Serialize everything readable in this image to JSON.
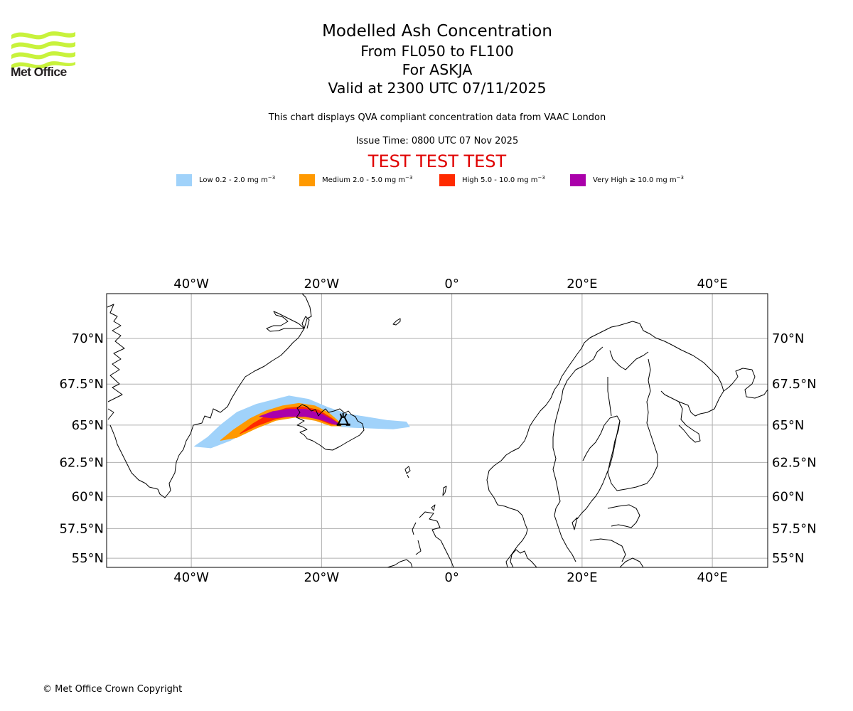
{
  "branding": {
    "logo_name": "Met Office",
    "logo_color": "#c8f23c"
  },
  "header": {
    "title": "Modelled Ash Concentration",
    "flight_levels": "From FL050 to FL100",
    "volcano": "For ASKJA",
    "valid_time": "Valid at 2300 UTC 07/11/2025",
    "description": "This chart displays QVA compliant concentration data from VAAC London",
    "issue_time": "Issue Time: 0800 UTC 07 Nov 2025",
    "test_banner": "TEST TEST TEST",
    "test_banner_color": "#e00000"
  },
  "legend": [
    {
      "label": "Low 0.2 - 2.0 mg m",
      "unit_exp": "−3",
      "color": "#a0d2fa"
    },
    {
      "label": "Medium 2.0 - 5.0 mg m",
      "unit_exp": "−3",
      "color": "#ff9900"
    },
    {
      "label": "High 5.0 - 10.0 mg m",
      "unit_exp": "−3",
      "color": "#ff2a00"
    },
    {
      "label": "Very High  ≥  10.0 mg m",
      "unit_exp": "−3",
      "color": "#aa00aa"
    }
  ],
  "map": {
    "extent": {
      "lon_min": -53,
      "lon_max": 48.5,
      "lat_min": 54.2,
      "lat_max": 72.2
    },
    "gridlines": "on",
    "lon_ticks": [
      {
        "value": -40,
        "label": "40°W"
      },
      {
        "value": -20,
        "label": "20°W"
      },
      {
        "value": 0,
        "label": "0°"
      },
      {
        "value": 20,
        "label": "20°E"
      },
      {
        "value": 40,
        "label": "40°E"
      }
    ],
    "lat_ticks": [
      {
        "value": 70,
        "label": "70°N"
      },
      {
        "value": 67.5,
        "label": "67.5°N"
      },
      {
        "value": 65,
        "label": "65°N"
      },
      {
        "value": 62.5,
        "label": "62.5°N"
      },
      {
        "value": 60,
        "label": "60°N"
      },
      {
        "value": 57.5,
        "label": "57.5°N"
      },
      {
        "value": 55,
        "label": "55°N"
      }
    ],
    "volcano_marker": {
      "name": "Askja",
      "lon": -16.8,
      "lat": 65.05,
      "icon": "volcano-icon"
    },
    "ash_plume": [
      {
        "level": "Low",
        "color": "#a0d2fa",
        "outline": [
          [
            -39.5,
            63.6
          ],
          [
            -37.5,
            64.2
          ],
          [
            -35.5,
            65.0
          ],
          [
            -33,
            65.8
          ],
          [
            -30,
            66.3
          ],
          [
            -27,
            66.6
          ],
          [
            -25,
            66.8
          ],
          [
            -22,
            66.6
          ],
          [
            -19,
            66.1
          ],
          [
            -16,
            65.7
          ],
          [
            -13,
            65.5
          ],
          [
            -10,
            65.3
          ],
          [
            -7,
            65.2
          ],
          [
            -6.5,
            64.9
          ],
          [
            -9,
            64.75
          ],
          [
            -12,
            64.8
          ],
          [
            -15,
            64.85
          ],
          [
            -17,
            64.9
          ],
          [
            -19,
            65.1
          ],
          [
            -22,
            65.4
          ],
          [
            -25,
            65.6
          ],
          [
            -28,
            65.3
          ],
          [
            -31,
            64.7
          ],
          [
            -34,
            64.0
          ],
          [
            -37,
            63.5
          ]
        ]
      },
      {
        "level": "Medium",
        "color": "#ff9900",
        "outline": [
          [
            -35.5,
            64.0
          ],
          [
            -33.5,
            64.7
          ],
          [
            -31,
            65.4
          ],
          [
            -28.5,
            65.9
          ],
          [
            -26,
            66.2
          ],
          [
            -23.5,
            66.35
          ],
          [
            -21,
            66.2
          ],
          [
            -19,
            65.8
          ],
          [
            -17.3,
            65.2
          ],
          [
            -17,
            64.95
          ],
          [
            -18.5,
            64.95
          ],
          [
            -21,
            65.3
          ],
          [
            -24,
            65.5
          ],
          [
            -27,
            65.3
          ],
          [
            -30,
            64.8
          ],
          [
            -33,
            64.2
          ]
        ]
      },
      {
        "level": "High",
        "color": "#ff2a00",
        "outline": [
          [
            -32.5,
            64.45
          ],
          [
            -30.5,
            65.1
          ],
          [
            -28,
            65.7
          ],
          [
            -25.5,
            66.05
          ],
          [
            -23,
            66.15
          ],
          [
            -20.5,
            65.95
          ],
          [
            -18.5,
            65.45
          ],
          [
            -17.2,
            65.05
          ],
          [
            -18.5,
            65.05
          ],
          [
            -21,
            65.45
          ],
          [
            -24,
            65.65
          ],
          [
            -27,
            65.4
          ],
          [
            -30,
            64.95
          ],
          [
            -32,
            64.55
          ]
        ]
      },
      {
        "level": "Very High",
        "color": "#aa00aa",
        "outline": [
          [
            -29.5,
            65.55
          ],
          [
            -27.5,
            65.85
          ],
          [
            -25,
            66.0
          ],
          [
            -22.5,
            66.0
          ],
          [
            -20,
            65.7
          ],
          [
            -18,
            65.25
          ],
          [
            -17.1,
            65.0
          ],
          [
            -18,
            65.05
          ],
          [
            -20,
            65.35
          ],
          [
            -22.5,
            65.55
          ],
          [
            -25,
            65.55
          ],
          [
            -27.5,
            65.45
          ]
        ]
      }
    ]
  },
  "footer": {
    "copyright": "© Met Office Crown Copyright"
  }
}
